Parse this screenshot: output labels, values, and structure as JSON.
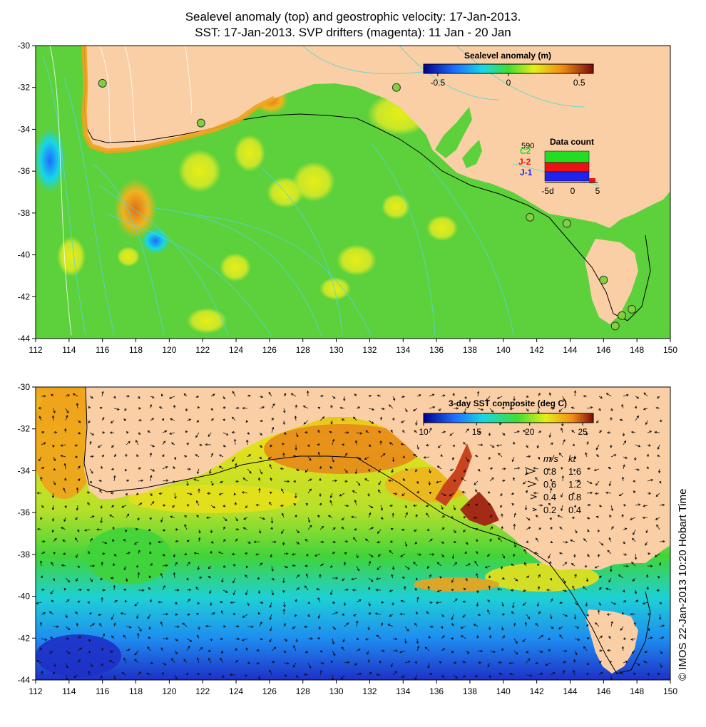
{
  "title": {
    "line1": "Sealevel anomaly (top) and geostrophic velocity: 17-Jan-2013.",
    "line2": "SST: 17-Jan-2013. SVP drifters (magenta): 11 Jan - 20 Jan"
  },
  "colors": {
    "land": "#fbcfa6",
    "ocean_sla": "#5cd13c",
    "ocean_sst": "#e8e31a",
    "contour_cyan": "#55d6d6",
    "shelf_line": "#000000"
  },
  "axes": {
    "lon_ticks": [
      "112",
      "114",
      "116",
      "118",
      "120",
      "122",
      "124",
      "126",
      "128",
      "130",
      "132",
      "134",
      "136",
      "138",
      "140",
      "142",
      "144",
      "146",
      "148",
      "150"
    ],
    "lat_ticks": [
      "-30",
      "-32",
      "-34",
      "-36",
      "-38",
      "-40",
      "-42",
      "-44"
    ],
    "lon_range": [
      112,
      150
    ],
    "lat_range": [
      -44,
      -30
    ]
  },
  "top_panel": {
    "colorbar": {
      "title": "Sealevel anomaly (m)",
      "ticks": [
        "-0.5",
        "0",
        "0.5"
      ],
      "range": [
        -0.6,
        0.6
      ],
      "tick_values": [
        -0.5,
        0,
        0.5
      ]
    },
    "data_count": {
      "title": "Data count",
      "max_label": "590",
      "series": [
        {
          "name": "C2",
          "color": "#22dd22"
        },
        {
          "name": "J-2",
          "color": "#ee1111"
        },
        {
          "name": "J-1",
          "color": "#2222ee"
        }
      ],
      "x_labels": [
        "-5d",
        "0",
        "5"
      ]
    },
    "tide_gauges": [
      {
        "lon": 116.0,
        "lat": -31.8
      },
      {
        "lon": 121.9,
        "lat": -33.7
      },
      {
        "lon": 133.6,
        "lat": -32.0
      },
      {
        "lon": 141.6,
        "lat": -38.2
      },
      {
        "lon": 143.8,
        "lat": -38.5
      },
      {
        "lon": 146.0,
        "lat": -41.2
      },
      {
        "lon": 147.1,
        "lat": -42.9
      },
      {
        "lon": 147.7,
        "lat": -42.6
      },
      {
        "lon": 146.7,
        "lat": -43.4
      }
    ]
  },
  "bottom_panel": {
    "colorbar": {
      "title": "3-day SST composite (deg C)",
      "ticks": [
        "10",
        "15",
        "20",
        "25"
      ],
      "range": [
        10,
        26
      ],
      "tick_values": [
        10,
        15,
        20,
        25
      ]
    },
    "velocity_legend": {
      "header_ms": "m/s",
      "header_kt": "kt",
      "rows": [
        {
          "ms": "0.8",
          "kt": "1.6"
        },
        {
          "ms": "0.6",
          "kt": "1.2"
        },
        {
          "ms": "0.4",
          "kt": "0.8"
        },
        {
          "ms": "0.2",
          "kt": "0.4"
        }
      ]
    }
  },
  "credit": "© IMOS 22-Jan-2013 10:20 Hobart Time"
}
